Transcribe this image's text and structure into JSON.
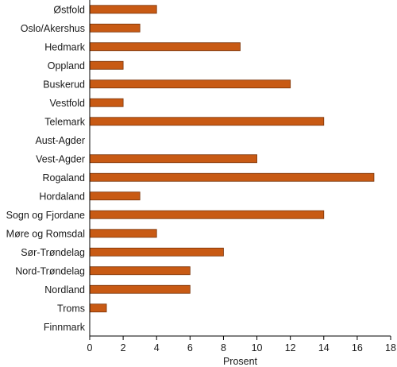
{
  "chart_data": {
    "type": "bar",
    "orientation": "horizontal",
    "categories": [
      "Østfold",
      "Oslo/Akershus",
      "Hedmark",
      "Oppland",
      "Buskerud",
      "Vestfold",
      "Telemark",
      "Aust-Agder",
      "Vest-Agder",
      "Rogaland",
      "Hordaland",
      "Sogn og Fjordane",
      "Møre og Romsdal",
      "Sør-Trøndelag",
      "Nord-Trøndelag",
      "Nordland",
      "Troms",
      "Finnmark"
    ],
    "values": [
      4,
      3,
      9,
      2,
      12,
      2,
      14,
      0,
      10,
      17,
      3,
      14,
      4,
      8,
      6,
      6,
      1,
      0
    ],
    "xlabel": "Prosent",
    "ylabel": "",
    "xlim": [
      0,
      18
    ],
    "xticks": [
      0,
      2,
      4,
      6,
      8,
      10,
      12,
      14,
      16,
      18
    ],
    "grid": false,
    "bar_color": "#c85a14"
  }
}
